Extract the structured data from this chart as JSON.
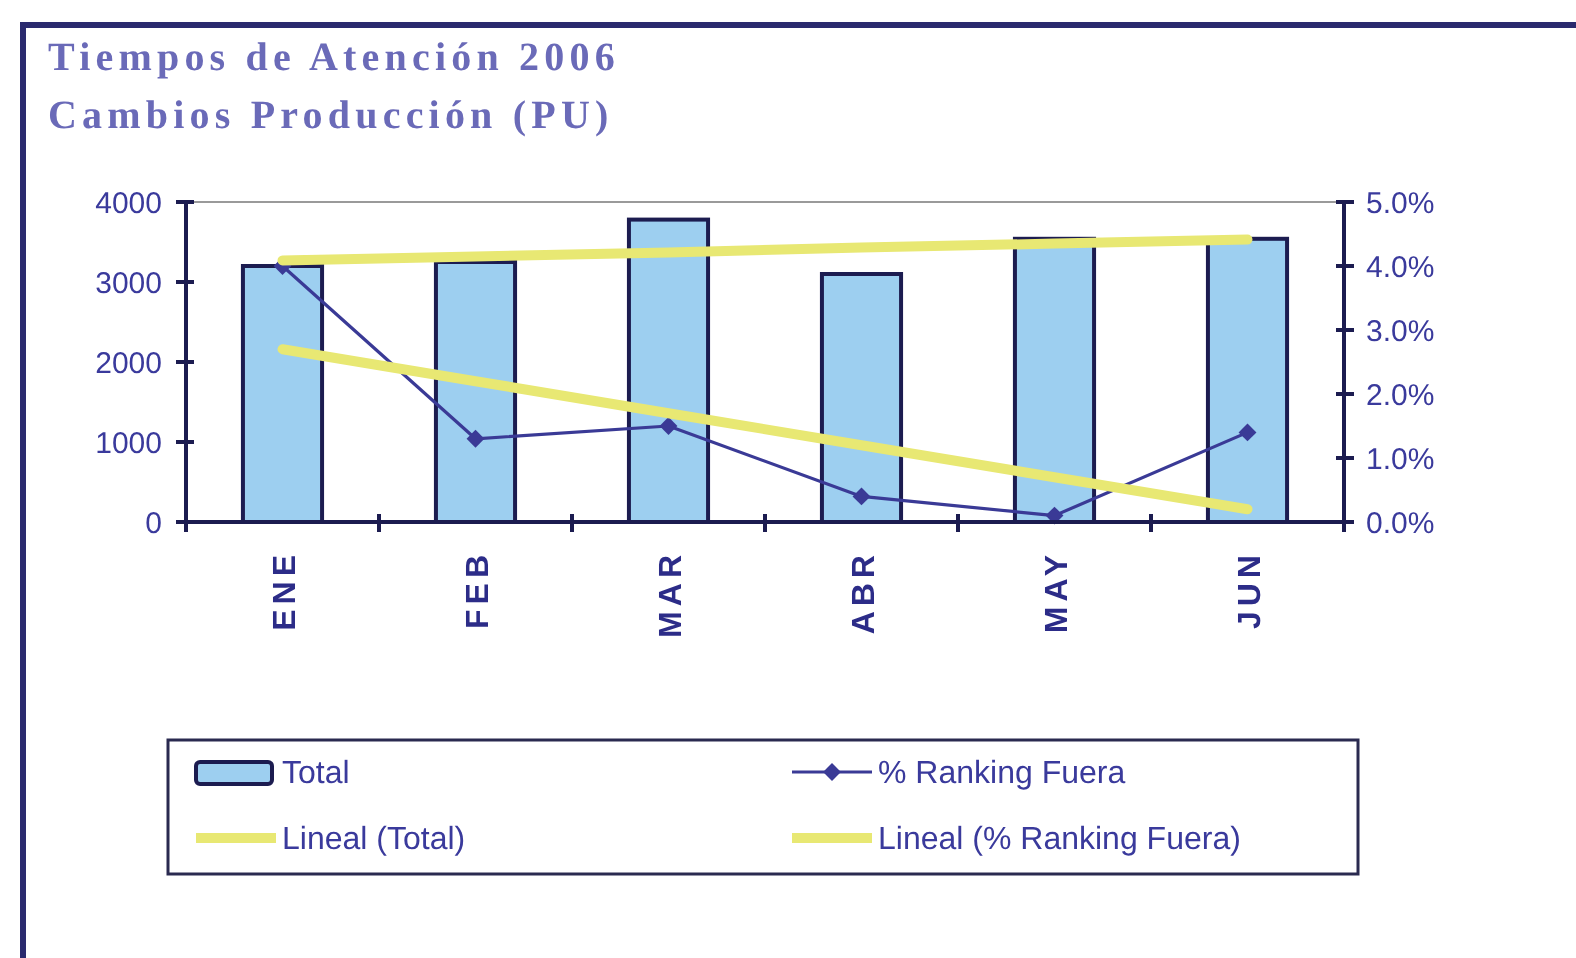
{
  "chart_data": {
    "type": "bar",
    "title": "Tiempos de Atención 2006",
    "subtitle": "Cambios Producción (PU)",
    "categories": [
      "ENE",
      "FEB",
      "MAR",
      "ABR",
      "MAY",
      "JUN"
    ],
    "series": [
      {
        "name": "Total",
        "color": "#9dcff0",
        "values": [
          3200,
          3250,
          3780,
          3100,
          3540,
          3540
        ]
      },
      {
        "name": "% Ranking Fuera",
        "type": "line",
        "axis": "y2",
        "marker": "diamond",
        "color": "#3a3a96",
        "values": [
          4.0,
          1.3,
          1.5,
          0.4,
          0.1,
          1.4
        ]
      },
      {
        "name": "Lineal (Total)",
        "type": "line",
        "color": "#e8e873",
        "values": [
          3270,
          3320,
          3370,
          3430,
          3480,
          3530
        ]
      },
      {
        "name": "Lineal (% Ranking Fuera)",
        "type": "line",
        "axis": "y2",
        "color": "#e8e873",
        "values": [
          2.7,
          2.2,
          1.7,
          1.2,
          0.7,
          0.2
        ]
      }
    ],
    "ylim": [
      0,
      4000
    ],
    "yticks": [
      0,
      1000,
      2000,
      3000,
      4000
    ],
    "y2lim": [
      0,
      5
    ],
    "y2ticks": [
      {
        "value": 0,
        "label": "0.0%"
      },
      {
        "value": 1,
        "label": "1.0%"
      },
      {
        "value": 2,
        "label": "2.0%"
      },
      {
        "value": 3,
        "label": "3.0%"
      },
      {
        "value": 4,
        "label": "4.0%"
      },
      {
        "value": 5,
        "label": "5.0%"
      }
    ],
    "legend": "bottom"
  }
}
